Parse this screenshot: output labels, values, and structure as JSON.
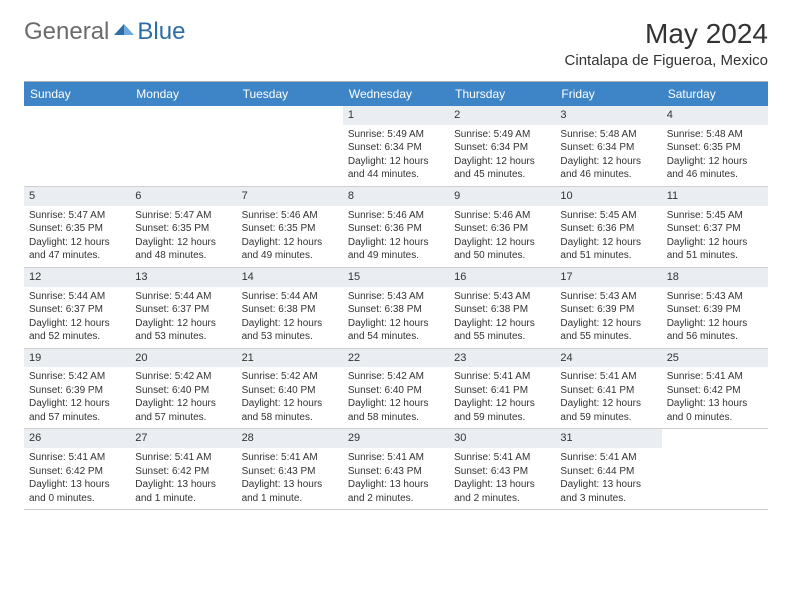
{
  "logo": {
    "text1": "General",
    "text2": "Blue"
  },
  "title": "May 2024",
  "location": "Cintalapa de Figueroa, Mexico",
  "colors": {
    "header_bg": "#3d85c6",
    "header_text": "#ffffff",
    "daynum_bg": "#eaeef2",
    "text": "#333333",
    "logo_gray": "#6b6b6b",
    "logo_blue": "#2d6ea8",
    "border": "#cfcfcf"
  },
  "day_names": [
    "Sunday",
    "Monday",
    "Tuesday",
    "Wednesday",
    "Thursday",
    "Friday",
    "Saturday"
  ],
  "weeks": [
    [
      null,
      null,
      null,
      {
        "n": "1",
        "sr": "5:49 AM",
        "ss": "6:34 PM",
        "dl": "12 hours and 44 minutes."
      },
      {
        "n": "2",
        "sr": "5:49 AM",
        "ss": "6:34 PM",
        "dl": "12 hours and 45 minutes."
      },
      {
        "n": "3",
        "sr": "5:48 AM",
        "ss": "6:34 PM",
        "dl": "12 hours and 46 minutes."
      },
      {
        "n": "4",
        "sr": "5:48 AM",
        "ss": "6:35 PM",
        "dl": "12 hours and 46 minutes."
      }
    ],
    [
      {
        "n": "5",
        "sr": "5:47 AM",
        "ss": "6:35 PM",
        "dl": "12 hours and 47 minutes."
      },
      {
        "n": "6",
        "sr": "5:47 AM",
        "ss": "6:35 PM",
        "dl": "12 hours and 48 minutes."
      },
      {
        "n": "7",
        "sr": "5:46 AM",
        "ss": "6:35 PM",
        "dl": "12 hours and 49 minutes."
      },
      {
        "n": "8",
        "sr": "5:46 AM",
        "ss": "6:36 PM",
        "dl": "12 hours and 49 minutes."
      },
      {
        "n": "9",
        "sr": "5:46 AM",
        "ss": "6:36 PM",
        "dl": "12 hours and 50 minutes."
      },
      {
        "n": "10",
        "sr": "5:45 AM",
        "ss": "6:36 PM",
        "dl": "12 hours and 51 minutes."
      },
      {
        "n": "11",
        "sr": "5:45 AM",
        "ss": "6:37 PM",
        "dl": "12 hours and 51 minutes."
      }
    ],
    [
      {
        "n": "12",
        "sr": "5:44 AM",
        "ss": "6:37 PM",
        "dl": "12 hours and 52 minutes."
      },
      {
        "n": "13",
        "sr": "5:44 AM",
        "ss": "6:37 PM",
        "dl": "12 hours and 53 minutes."
      },
      {
        "n": "14",
        "sr": "5:44 AM",
        "ss": "6:38 PM",
        "dl": "12 hours and 53 minutes."
      },
      {
        "n": "15",
        "sr": "5:43 AM",
        "ss": "6:38 PM",
        "dl": "12 hours and 54 minutes."
      },
      {
        "n": "16",
        "sr": "5:43 AM",
        "ss": "6:38 PM",
        "dl": "12 hours and 55 minutes."
      },
      {
        "n": "17",
        "sr": "5:43 AM",
        "ss": "6:39 PM",
        "dl": "12 hours and 55 minutes."
      },
      {
        "n": "18",
        "sr": "5:43 AM",
        "ss": "6:39 PM",
        "dl": "12 hours and 56 minutes."
      }
    ],
    [
      {
        "n": "19",
        "sr": "5:42 AM",
        "ss": "6:39 PM",
        "dl": "12 hours and 57 minutes."
      },
      {
        "n": "20",
        "sr": "5:42 AM",
        "ss": "6:40 PM",
        "dl": "12 hours and 57 minutes."
      },
      {
        "n": "21",
        "sr": "5:42 AM",
        "ss": "6:40 PM",
        "dl": "12 hours and 58 minutes."
      },
      {
        "n": "22",
        "sr": "5:42 AM",
        "ss": "6:40 PM",
        "dl": "12 hours and 58 minutes."
      },
      {
        "n": "23",
        "sr": "5:41 AM",
        "ss": "6:41 PM",
        "dl": "12 hours and 59 minutes."
      },
      {
        "n": "24",
        "sr": "5:41 AM",
        "ss": "6:41 PM",
        "dl": "12 hours and 59 minutes."
      },
      {
        "n": "25",
        "sr": "5:41 AM",
        "ss": "6:42 PM",
        "dl": "13 hours and 0 minutes."
      }
    ],
    [
      {
        "n": "26",
        "sr": "5:41 AM",
        "ss": "6:42 PM",
        "dl": "13 hours and 0 minutes."
      },
      {
        "n": "27",
        "sr": "5:41 AM",
        "ss": "6:42 PM",
        "dl": "13 hours and 1 minute."
      },
      {
        "n": "28",
        "sr": "5:41 AM",
        "ss": "6:43 PM",
        "dl": "13 hours and 1 minute."
      },
      {
        "n": "29",
        "sr": "5:41 AM",
        "ss": "6:43 PM",
        "dl": "13 hours and 2 minutes."
      },
      {
        "n": "30",
        "sr": "5:41 AM",
        "ss": "6:43 PM",
        "dl": "13 hours and 2 minutes."
      },
      {
        "n": "31",
        "sr": "5:41 AM",
        "ss": "6:44 PM",
        "dl": "13 hours and 3 minutes."
      },
      null
    ]
  ],
  "labels": {
    "sunrise": "Sunrise:",
    "sunset": "Sunset:",
    "daylight": "Daylight:"
  }
}
